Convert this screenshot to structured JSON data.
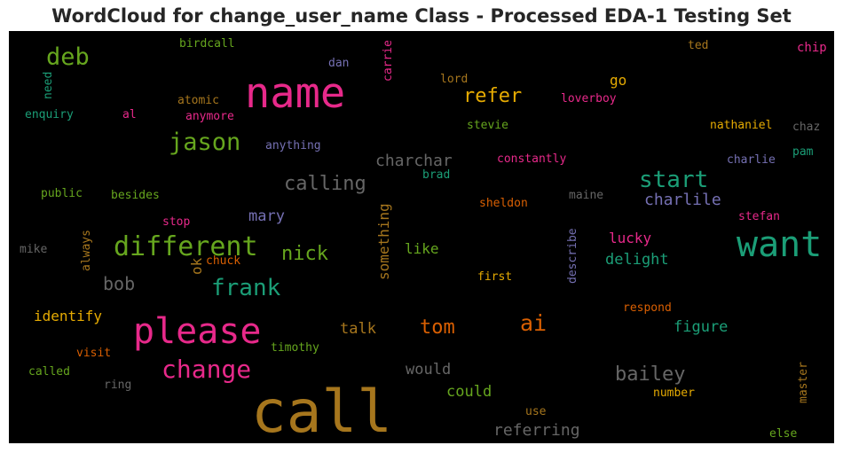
{
  "chart_data": {
    "type": "wordcloud",
    "title": "WordCloud for change_user_name Class - Processed EDA-1 Testing Set",
    "background": "#000000",
    "colors": {
      "pink": "#e7298a",
      "green": "#66a61e",
      "teal": "#1b9e77",
      "gold": "#e6ab02",
      "ochre": "#a6761d",
      "orange": "#d95f02",
      "purple": "#7570b3",
      "gray": "#666666"
    },
    "words": [
      {
        "text": "call",
        "color": "ochre"
      },
      {
        "text": "name",
        "color": "pink"
      },
      {
        "text": "please",
        "color": "pink"
      },
      {
        "text": "want",
        "color": "teal"
      },
      {
        "text": "different",
        "color": "green"
      },
      {
        "text": "change",
        "color": "pink"
      },
      {
        "text": "jason",
        "color": "green"
      },
      {
        "text": "frank",
        "color": "teal"
      },
      {
        "text": "start",
        "color": "teal"
      },
      {
        "text": "ai",
        "color": "orange"
      },
      {
        "text": "deb",
        "color": "green"
      },
      {
        "text": "calling",
        "color": "gray"
      },
      {
        "text": "refer",
        "color": "gold"
      },
      {
        "text": "bailey",
        "color": "gray"
      },
      {
        "text": "nick",
        "color": "green"
      },
      {
        "text": "tom",
        "color": "orange"
      },
      {
        "text": "bob",
        "color": "gray"
      },
      {
        "text": "charchar",
        "color": "gray"
      },
      {
        "text": "charlile",
        "color": "purple"
      },
      {
        "text": "referring",
        "color": "gray"
      },
      {
        "text": "mary",
        "color": "purple"
      },
      {
        "text": "figure",
        "color": "teal"
      },
      {
        "text": "delight",
        "color": "teal"
      },
      {
        "text": "lucky",
        "color": "pink"
      },
      {
        "text": "would",
        "color": "gray"
      },
      {
        "text": "could",
        "color": "green"
      },
      {
        "text": "talk",
        "color": "ochre"
      },
      {
        "text": "identify",
        "color": "gold"
      },
      {
        "text": "like",
        "color": "green"
      },
      {
        "text": "go",
        "color": "gold"
      },
      {
        "text": "something",
        "color": "ochre"
      },
      {
        "text": "ok",
        "color": "ochre"
      },
      {
        "text": "birdcall",
        "color": "green"
      },
      {
        "text": "dan",
        "color": "purple"
      },
      {
        "text": "carrie",
        "color": "pink"
      },
      {
        "text": "ted",
        "color": "ochre"
      },
      {
        "text": "chip",
        "color": "pink"
      },
      {
        "text": "need",
        "color": "teal"
      },
      {
        "text": "lord",
        "color": "ochre"
      },
      {
        "text": "atomic",
        "color": "ochre"
      },
      {
        "text": "loverboy",
        "color": "pink"
      },
      {
        "text": "enquiry",
        "color": "teal"
      },
      {
        "text": "al",
        "color": "pink"
      },
      {
        "text": "anymore",
        "color": "pink"
      },
      {
        "text": "stevie",
        "color": "green"
      },
      {
        "text": "nathaniel",
        "color": "gold"
      },
      {
        "text": "chaz",
        "color": "gray"
      },
      {
        "text": "anything",
        "color": "purple"
      },
      {
        "text": "constantly",
        "color": "pink"
      },
      {
        "text": "charlie",
        "color": "purple"
      },
      {
        "text": "pam",
        "color": "teal"
      },
      {
        "text": "brad",
        "color": "teal"
      },
      {
        "text": "public",
        "color": "green"
      },
      {
        "text": "besides",
        "color": "green"
      },
      {
        "text": "sheldon",
        "color": "orange"
      },
      {
        "text": "maine",
        "color": "gray"
      },
      {
        "text": "stop",
        "color": "pink"
      },
      {
        "text": "stefan",
        "color": "pink"
      },
      {
        "text": "mike",
        "color": "gray"
      },
      {
        "text": "always",
        "color": "ochre"
      },
      {
        "text": "chuck",
        "color": "orange"
      },
      {
        "text": "describe",
        "color": "purple"
      },
      {
        "text": "first",
        "color": "gold"
      },
      {
        "text": "respond",
        "color": "orange"
      },
      {
        "text": "timothy",
        "color": "green"
      },
      {
        "text": "visit",
        "color": "orange"
      },
      {
        "text": "called",
        "color": "green"
      },
      {
        "text": "ring",
        "color": "gray"
      },
      {
        "text": "master",
        "color": "ochre"
      },
      {
        "text": "number",
        "color": "gold"
      },
      {
        "text": "use",
        "color": "ochre"
      },
      {
        "text": "else",
        "color": "green"
      }
    ]
  }
}
